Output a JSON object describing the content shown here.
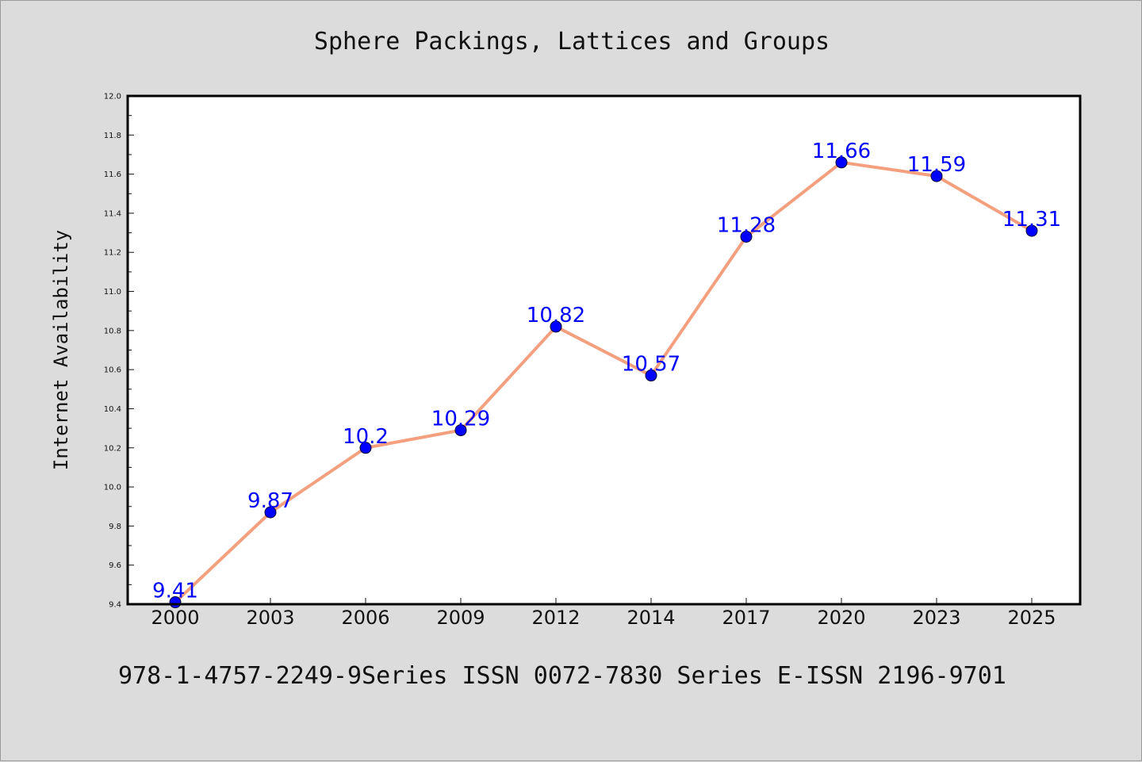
{
  "chart_data": {
    "type": "line",
    "title": "Sphere Packings, Lattices and Groups",
    "xlabel": "",
    "ylabel": "Internet Availability",
    "categories": [
      "2000",
      "2003",
      "2006",
      "2009",
      "2012",
      "2014",
      "2017",
      "2020",
      "2023",
      "2025"
    ],
    "series": [
      {
        "values": [
          9.41,
          9.87,
          10.2,
          10.29,
          10.82,
          10.57,
          11.28,
          11.66,
          11.59,
          11.31
        ]
      }
    ],
    "data_labels": [
      "9.41",
      "9.87",
      "10.2",
      "10.29",
      "10.82",
      "10.57",
      "11.28",
      "11.66",
      "11.59",
      "11.31"
    ],
    "ylim": [
      9.4,
      12.0
    ],
    "yticks": [
      "9.4",
      "9.6",
      "9.8",
      "10.0",
      "10.2",
      "10.4",
      "10.6",
      "10.8",
      "11.0",
      "11.2",
      "11.4",
      "11.6",
      "11.8",
      "12.0"
    ],
    "grid": false,
    "legend": "none",
    "colors": {
      "line": "#f4a07e",
      "marker": "#0000ff",
      "label": "#0000ff",
      "plot_bg": "#ffffff",
      "page_bg": "#dcdcdc"
    }
  },
  "footer": {
    "text": "978-1-4757-2249-9Series ISSN 0072-7830 Series E-ISSN 2196-9701"
  }
}
